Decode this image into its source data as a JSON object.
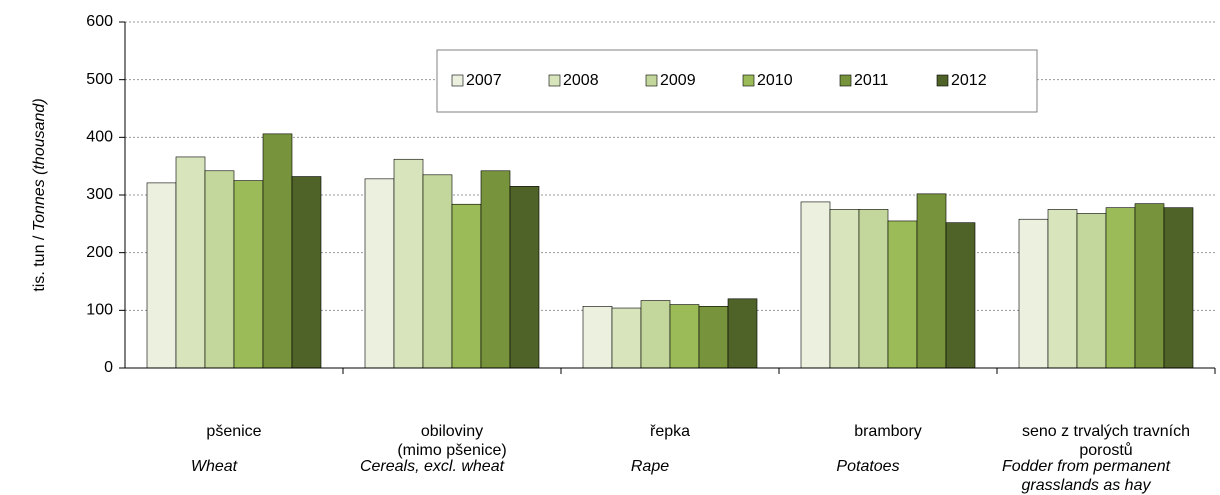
{
  "chart_data": {
    "type": "bar",
    "ylabel": [
      "tis. tun / ",
      "Tonnes (thousand)"
    ],
    "categories": [
      [
        "pšenice"
      ],
      [
        "obiloviny",
        "(mimo pšenice)"
      ],
      [
        "řepka"
      ],
      [
        "brambory"
      ],
      [
        "seno z trvalých travních",
        "porostů"
      ]
    ],
    "categories_en": [
      [
        "Wheat"
      ],
      [
        "Cereals, excl. wheat"
      ],
      [
        "Rape"
      ],
      [
        "Potatoes"
      ],
      [
        "Fodder  from permanent",
        "grasslands as hay"
      ]
    ],
    "series": [
      {
        "name": "2007",
        "color": "#ebf1de",
        "values": [
          321,
          328,
          107,
          288,
          258
        ]
      },
      {
        "name": "2008",
        "color": "#d7e4bc",
        "values": [
          366,
          362,
          104,
          275,
          275
        ]
      },
      {
        "name": "2009",
        "color": "#c3d69b",
        "values": [
          342,
          335,
          117,
          275,
          268
        ]
      },
      {
        "name": "2010",
        "color": "#9bbb59",
        "values": [
          325,
          284,
          110,
          255,
          278
        ]
      },
      {
        "name": "2011",
        "color": "#77933c",
        "values": [
          406,
          342,
          107,
          302,
          285
        ]
      },
      {
        "name": "2012",
        "color": "#4f6228",
        "values": [
          332,
          315,
          120,
          252,
          278
        ]
      }
    ],
    "ylim": [
      0,
      600
    ],
    "yticks": [
      0,
      100,
      200,
      300,
      400,
      500,
      600
    ],
    "grid": true
  }
}
